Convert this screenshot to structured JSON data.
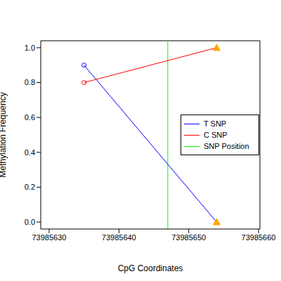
{
  "chart_data": {
    "type": "line",
    "x_label": "CpG Coordinates",
    "y_label": "Methylation Frequency",
    "x": [
      73985635,
      73985654
    ],
    "series": [
      {
        "name": "T SNP",
        "color": "#0000ff",
        "values": [
          0.9,
          0.0
        ],
        "marker": "circle"
      },
      {
        "name": "C SNP",
        "color": "#ff0000",
        "values": [
          0.8,
          1.0
        ],
        "marker": "circle"
      },
      {
        "name": "SNP Position",
        "color": "#00ff00",
        "type": "vline",
        "x": [
          73985647
        ]
      }
    ],
    "xlim": [
      73985628.8,
      73985660.2
    ],
    "xticks": [
      73985630,
      73985640,
      73985650,
      73985660
    ],
    "ylim": [
      -0.04,
      1.04
    ],
    "yticks": [
      {
        "value": 0,
        "label": "0.0"
      },
      0.2,
      0.4,
      0.6,
      0.8,
      {
        "value": 1,
        "label": "1.0"
      }
    ],
    "grid": false,
    "legend": "right"
  }
}
